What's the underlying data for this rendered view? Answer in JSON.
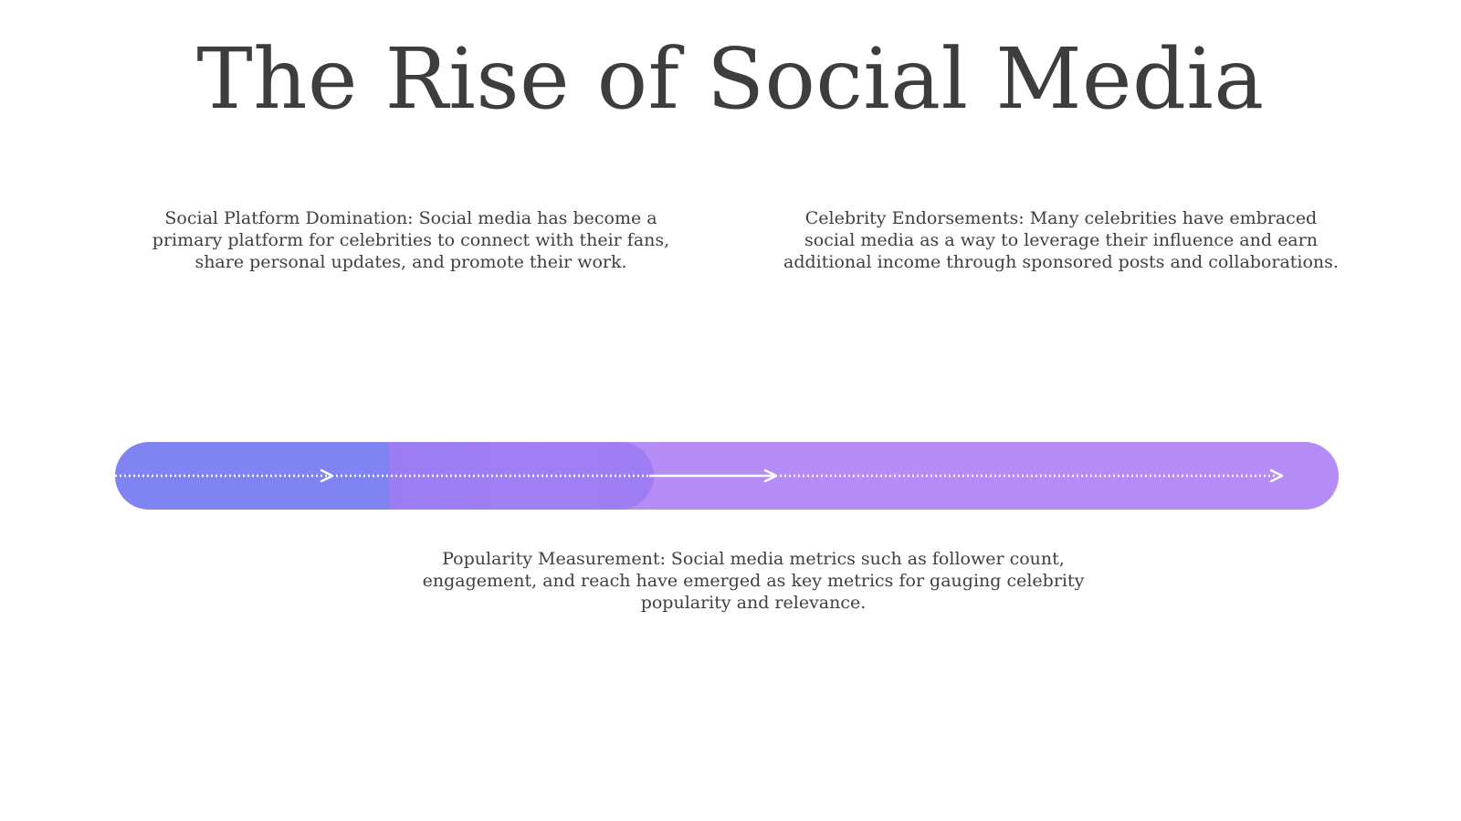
{
  "slide": {
    "title": "The Rise of Social Media"
  },
  "points": [
    {
      "text": "Social Platform Domination: Social media has become a primary platform for celebrities to connect with their fans, share personal updates, and promote their work."
    },
    {
      "text": "Celebrity Endorsements: Many celebrities have embraced social media as a way to leverage their influence and earn additional income through sponsored posts and collaborations."
    },
    {
      "text": "Popularity Measurement: Social media metrics such as follower count, engagement, and reach have emerged as key metrics for gauging celebrity popularity and relevance."
    }
  ],
  "timeline": {
    "segment_count": 3,
    "colors": {
      "segment_1": "#7f84f2",
      "segment_2": "#a17ff4",
      "segment_3": "#b58cf6",
      "arrow_line": "#ffffff"
    },
    "icons": [
      "arrow-right-icon",
      "arrow-right-icon",
      "arrow-right-icon"
    ]
  }
}
